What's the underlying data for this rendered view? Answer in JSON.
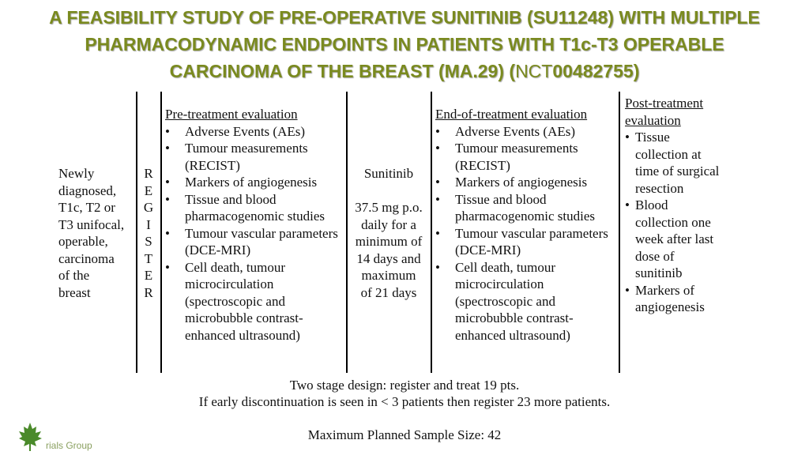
{
  "title": {
    "line1": "A FEASIBILITY STUDY OF PRE-OPERATIVE SUNITINIB (SU11248) WITH MULTIPLE",
    "line2": "PHARMACODYNAMIC ENDPOINTS IN PATIENTS WITH T1c-T3 OPERABLE",
    "line3_main": "CARCINOMA OF THE BREAST (MA.29) (",
    "line3_nct_prefix": "NCT",
    "line3_nct_number": "00482755",
    "line3_close": ")"
  },
  "diagram": {
    "eligibility": [
      "Newly",
      "diagnosed,",
      "T1c, T2 or",
      "T3 unifocal,",
      "operable,",
      "carcinoma",
      "of the",
      "breast"
    ],
    "register_letters": [
      "R",
      "E",
      "G",
      "I",
      "S",
      "T",
      "E",
      "R"
    ],
    "pre_treatment": {
      "heading": "Pre-treatment evaluation",
      "items": [
        "Adverse Events (AEs)",
        "Tumour measurements (RECIST)",
        "Markers of angiogenesis",
        "Tissue and blood pharmacogenomic studies",
        "Tumour vascular parameters (DCE-MRI)",
        "Cell death, tumour microcirculation (spectroscopic and microbubble contrast-enhanced ultrasound)"
      ]
    },
    "treatment": {
      "drug": "Sunitinib",
      "dosing": [
        "37.5 mg p.o.",
        "daily for a",
        "minimum of",
        "14 days and",
        "maximum",
        "of 21 days"
      ]
    },
    "end_of_treatment": {
      "heading": "End-of-treatment evaluation",
      "items": [
        "Adverse Events (AEs)",
        "Tumour measurements (RECIST)",
        "Markers of angiogenesis",
        "Tissue and blood pharmacogenomic studies",
        "Tumour vascular parameters (DCE-MRI)",
        "Cell death, tumour microcirculation (spectroscopic and microbubble contrast-enhanced ultrasound)"
      ]
    },
    "post_treatment": {
      "heading_line1": "Post-treatment",
      "heading_line2": "evaluation",
      "items": [
        "Tissue collection at time of surgical resection",
        "Blood collection one week after last dose of sunitinib",
        "Markers of angiogenesis"
      ]
    }
  },
  "footer": {
    "design_line1": "Two stage design: register and treat 19 pts.",
    "design_line2": "If early discontinuation is seen in < 3 patients then register 23 more patients.",
    "sample_size": "Maximum Planned Sample Size: 42"
  },
  "logo": {
    "text": "rials Group",
    "icon": "maple-leaf-icon",
    "color": "#4a8a2a"
  },
  "colors": {
    "title": "#7a8a1f",
    "text": "#111111"
  }
}
